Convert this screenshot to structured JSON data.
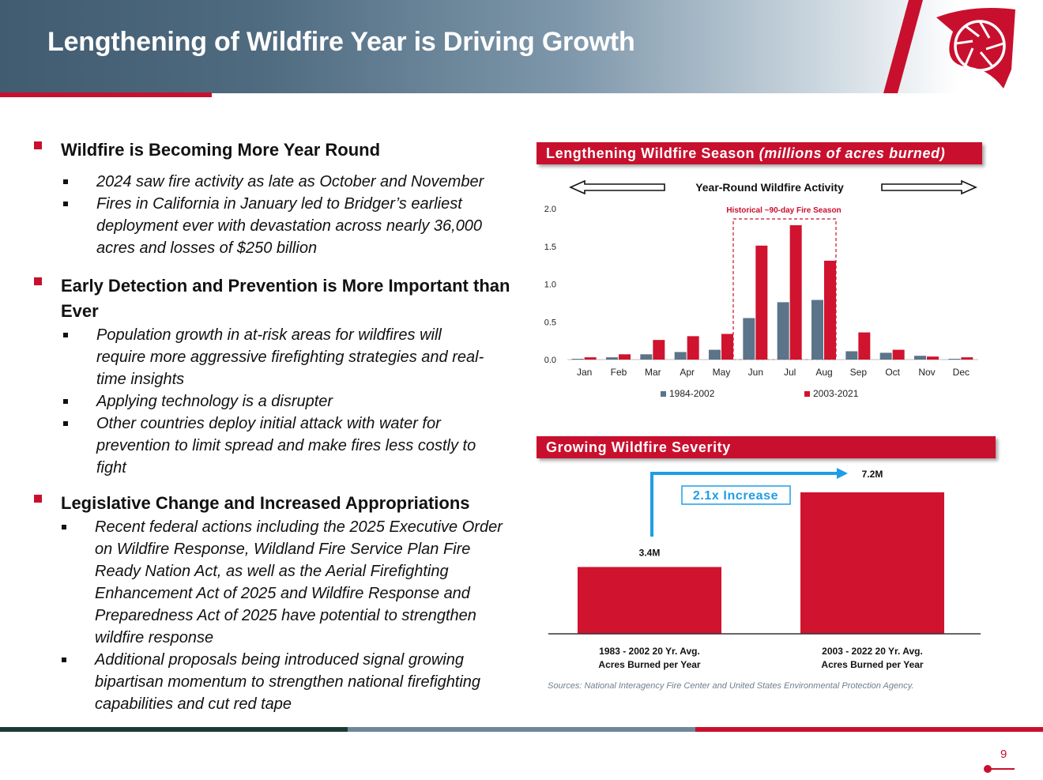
{
  "header": {
    "title": "Lengthening of Wildfire Year is Driving Growth"
  },
  "sections": [
    {
      "title": "Wildfire is Becoming More Year Round",
      "items": [
        "2024 saw fire activity as late as October and November",
        "Fires in California in January led to Bridger’s earliest deployment ever with devastation across nearly 36,000 acres and losses of $250 billion"
      ]
    },
    {
      "title": "Early Detection and Prevention is More Important than Ever",
      "items": [
        "Population growth in at-risk areas for wildfires will require more aggressive firefighting strategies and real-time insights",
        "Applying technology is a disrupter",
        "Other countries deploy initial attack with water for prevention to limit spread and make fires less costly to fight"
      ]
    },
    {
      "title": "Legislative Change and Increased Appropriations",
      "items": [
        "Recent federal actions including the 2025 Executive Order on Wildfire Response, Wildland Fire Service Plan Fire Ready Nation Act,  as well as the Aerial Firefighting Enhancement Act of 2025 and Wildfire Response and Preparedness Act of 2025 have potential to strengthen wildfire response",
        "Additional proposals being introduced signal growing bipartisan momentum to strengthen national firefighting capabilities and cut red tape"
      ]
    }
  ],
  "panels": {
    "season_title": "Lengthening Wildfire Season",
    "season_title_suffix": "(millions of acres burned)",
    "year_round_label": "Year-Round Wildfire Activity",
    "historical_label": "Historical ~90-day Fire Season",
    "severity_title": "Growing Wildfire Severity",
    "increase_label": "2.1x Increase"
  },
  "colors": {
    "red": "#d0132e",
    "gray_blue": "#5b7489",
    "header_dark": "#415b70",
    "arrow_blue": "#1e9ee6"
  },
  "chart_data": [
    {
      "type": "bar",
      "title": "Lengthening Wildfire Season (millions of acres burned)",
      "categories": [
        "Jan",
        "Feb",
        "Mar",
        "Apr",
        "May",
        "Jun",
        "Jul",
        "Aug",
        "Sep",
        "Oct",
        "Nov",
        "Dec"
      ],
      "series": [
        {
          "name": "1984-2002",
          "values": [
            0.01,
            0.03,
            0.07,
            0.1,
            0.13,
            0.55,
            0.76,
            0.79,
            0.11,
            0.09,
            0.05,
            0.01
          ]
        },
        {
          "name": "2003-2021",
          "values": [
            0.03,
            0.07,
            0.26,
            0.31,
            0.34,
            1.51,
            1.78,
            1.31,
            0.36,
            0.13,
            0.04,
            0.03
          ]
        }
      ],
      "yticks": [
        "2.0",
        "1.5",
        "1.0",
        "0.5",
        "0.0"
      ],
      "ylim": [
        0,
        2.0
      ],
      "legend": "bottom"
    },
    {
      "type": "bar",
      "title": "Growing Wildfire Severity",
      "categories": [
        "1983 - 2002 20 Yr. Avg.\nAcres Burned per Year",
        "2003 - 2022 20 Yr. Avg.\nAcres Burned per Year"
      ],
      "category_lines": [
        [
          "1983 - 2002 20 Yr. Avg.",
          "Acres Burned per Year"
        ],
        [
          "2003 - 2022 20 Yr. Avg.",
          "Acres Burned per Year"
        ]
      ],
      "values": [
        3.4,
        7.2
      ],
      "value_labels": [
        "3.4M",
        "7.2M"
      ],
      "unit": "M acres",
      "ylim": [
        0,
        8
      ]
    }
  ],
  "footer": {
    "sources": "Sources: National Interagency Fire Center and United States Environmental Protection Agency.",
    "page_number": "9"
  }
}
